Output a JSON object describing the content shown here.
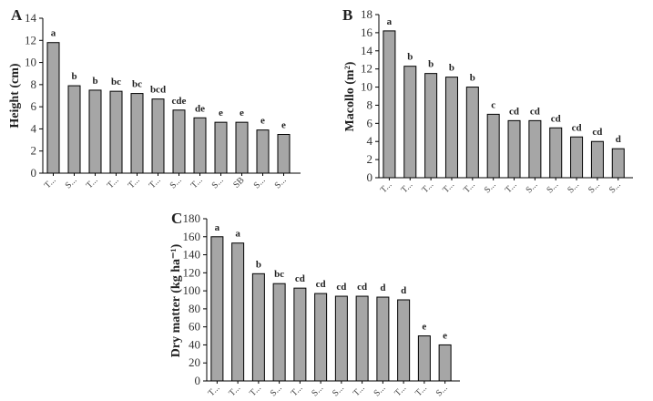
{
  "chart_data": [
    {
      "type": "bar",
      "panel_label": "A",
      "ylabel": "Height (cm)",
      "ylim": [
        0,
        14
      ],
      "ytick_step": 2,
      "categories": [
        "T...",
        "S...",
        "T...",
        "T...",
        "T...",
        "T...",
        "S...",
        "T...",
        "S...",
        "SB",
        "S...",
        "S..."
      ],
      "values": [
        11.8,
        7.9,
        7.5,
        7.4,
        7.2,
        6.7,
        5.7,
        5.0,
        4.6,
        4.6,
        3.9,
        3.5
      ],
      "letters": [
        "a",
        "b",
        "b",
        "bc",
        "bc",
        "bcd",
        "cde",
        "de",
        "e",
        "e",
        "e",
        "e"
      ]
    },
    {
      "type": "bar",
      "panel_label": "B",
      "ylabel": "Macollo (m²)",
      "ylim": [
        0,
        18
      ],
      "ytick_step": 2,
      "categories": [
        "T...",
        "T...",
        "T...",
        "T...",
        "T...",
        "S...",
        "T...",
        "S...",
        "S...",
        "S...",
        "S...",
        "S..."
      ],
      "values": [
        16.2,
        12.3,
        11.5,
        11.1,
        10.0,
        7.0,
        6.3,
        6.3,
        5.5,
        4.5,
        4.0,
        3.2
      ],
      "letters": [
        "a",
        "b",
        "b",
        "b",
        "b",
        "c",
        "cd",
        "cd",
        "cd",
        "cd",
        "cd",
        "d"
      ]
    },
    {
      "type": "bar",
      "panel_label": "C",
      "ylabel": "Dry matter (kg ha⁻¹)",
      "ylim": [
        0,
        180
      ],
      "ytick_step": 20,
      "categories": [
        "T...",
        "T...",
        "T...",
        "S...",
        "T...",
        "S...",
        "S...",
        "T...",
        "S...",
        "T...",
        "T...",
        "S..."
      ],
      "values": [
        160,
        153,
        119,
        108,
        103,
        97,
        94,
        94,
        93,
        90,
        50,
        40
      ],
      "letters": [
        "a",
        "a",
        "b",
        "bc",
        "cd",
        "cd",
        "cd",
        "cd",
        "d",
        "d",
        "e",
        "e"
      ]
    }
  ]
}
